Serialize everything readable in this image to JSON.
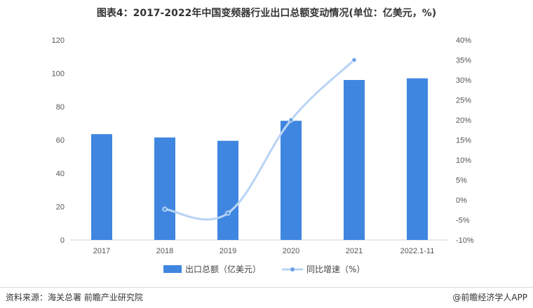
{
  "chart_data": {
    "type": "bar",
    "title": "图表4：2017-2022年中国变频器行业出口总额变动情况(单位：亿美元，%)",
    "categories": [
      "2017",
      "2018",
      "2019",
      "2020",
      "2021",
      "2022.1-11"
    ],
    "series": [
      {
        "name": "出口总额（亿美元）",
        "type": "bar",
        "axis": "left",
        "color": "#3f86e0",
        "values": [
          63.5,
          61.5,
          59.5,
          71.5,
          96,
          97
        ]
      },
      {
        "name": "同比增速（%）",
        "type": "line",
        "axis": "right",
        "color": "#b8d4f5",
        "values": [
          null,
          -2.3,
          -3.3,
          20,
          35,
          null
        ]
      }
    ],
    "y_left": {
      "min": 0,
      "max": 120,
      "ticks": [
        0,
        20,
        40,
        60,
        80,
        100,
        120
      ]
    },
    "y_right": {
      "min": -10,
      "max": 40,
      "ticks": [
        "-10%",
        "-5%",
        "0%",
        "5%",
        "10%",
        "15%",
        "20%",
        "25%",
        "30%",
        "35%",
        "40%"
      ]
    },
    "legend": "bottom",
    "grid": false
  },
  "footer": {
    "source": "资料来源：海关总署 前瞻产业研究院",
    "brand": "@前瞻经济学人APP"
  }
}
